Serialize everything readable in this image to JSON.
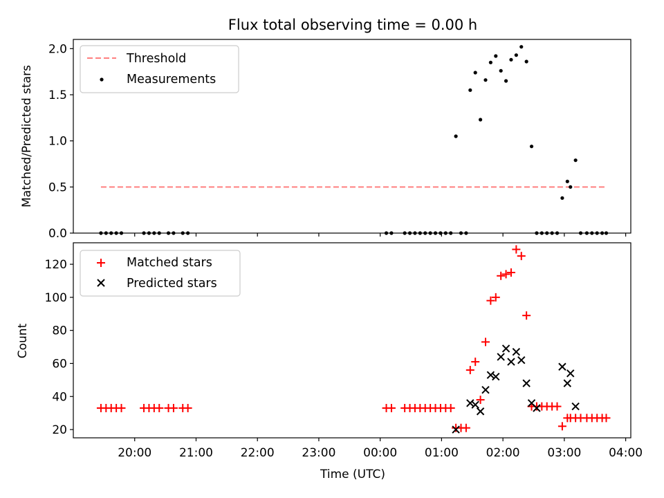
{
  "chart_data": [
    {
      "type": "scatter",
      "title": "Flux total observing time = 0.00 h",
      "xlabel": "",
      "ylabel": "Matched/Predicted stars",
      "ylim": [
        0,
        2.1
      ],
      "yticks": [
        "0.0",
        "0.5",
        "1.0",
        "1.5",
        "2.0"
      ],
      "ytick_values": [
        0,
        0.5,
        1.0,
        1.5,
        2.0
      ],
      "legend_position": "top-left",
      "threshold": {
        "name": "Threshold",
        "value": 0.5,
        "x_start": "19:27",
        "x_end": "03:41",
        "color": "#ff7f7f"
      },
      "series": [
        {
          "name": "Measurements",
          "color": "#000000",
          "x": [
            "19:27",
            "19:32",
            "19:37",
            "19:42",
            "19:47",
            "20:09",
            "20:14",
            "20:19",
            "20:24",
            "20:33",
            "20:38",
            "20:47",
            "20:52",
            "00:06",
            "00:11",
            "00:24",
            "00:29",
            "00:34",
            "00:39",
            "00:44",
            "00:49",
            "00:54",
            "00:59",
            "01:04",
            "01:09",
            "01:14",
            "01:19",
            "01:24",
            "01:28",
            "01:33",
            "01:38",
            "01:43",
            "01:48",
            "01:53",
            "01:58",
            "02:03",
            "02:08",
            "02:13",
            "02:18",
            "02:23",
            "02:28",
            "02:33",
            "02:38",
            "02:43",
            "02:48",
            "02:53",
            "02:58",
            "03:03",
            "03:06",
            "03:11",
            "03:16",
            "03:22",
            "03:27",
            "03:32",
            "03:37",
            "03:41"
          ],
          "y": [
            0,
            0,
            0,
            0,
            0,
            0,
            0,
            0,
            0,
            0,
            0,
            0,
            0,
            0,
            0,
            0,
            0,
            0,
            0,
            0,
            0,
            0,
            0,
            0,
            0,
            1.05,
            0,
            0,
            1.55,
            1.74,
            1.23,
            1.66,
            1.85,
            1.92,
            1.76,
            1.65,
            1.88,
            1.93,
            2.02,
            1.86,
            0.94,
            0,
            0,
            0,
            0,
            0,
            0.38,
            0.56,
            0.5,
            0.79,
            0,
            0,
            0,
            0,
            0,
            0
          ]
        }
      ]
    },
    {
      "type": "scatter",
      "title": "",
      "xlabel": "Time (UTC)",
      "ylabel": "Count",
      "ylim": [
        15,
        133
      ],
      "yticks": [
        "20",
        "40",
        "60",
        "80",
        "100",
        "120"
      ],
      "ytick_values": [
        20,
        40,
        60,
        80,
        100,
        120
      ],
      "xlim": [
        "19:00",
        "04:05"
      ],
      "xticks": [
        "20:00",
        "21:00",
        "22:00",
        "23:00",
        "00:00",
        "01:00",
        "02:00",
        "03:00",
        "04:00"
      ],
      "legend_position": "top-left",
      "series": [
        {
          "name": "Matched stars",
          "marker": "+",
          "color": "#ff0000",
          "x": [
            "19:27",
            "19:32",
            "19:37",
            "19:42",
            "19:47",
            "20:09",
            "20:14",
            "20:19",
            "20:24",
            "20:33",
            "20:38",
            "20:47",
            "20:52",
            "00:06",
            "00:11",
            "00:24",
            "00:29",
            "00:34",
            "00:39",
            "00:44",
            "00:49",
            "00:54",
            "00:59",
            "01:04",
            "01:09",
            "01:14",
            "01:19",
            "01:24",
            "01:28",
            "01:33",
            "01:38",
            "01:43",
            "01:48",
            "01:53",
            "01:58",
            "02:03",
            "02:08",
            "02:13",
            "02:18",
            "02:23",
            "02:28",
            "02:33",
            "02:38",
            "02:43",
            "02:48",
            "02:53",
            "02:58",
            "03:03",
            "03:06",
            "03:11",
            "03:16",
            "03:22",
            "03:27",
            "03:32",
            "03:37",
            "03:41"
          ],
          "y": [
            33,
            33,
            33,
            33,
            33,
            33,
            33,
            33,
            33,
            33,
            33,
            33,
            33,
            33,
            33,
            33,
            33,
            33,
            33,
            33,
            33,
            33,
            33,
            33,
            33,
            21,
            21,
            21,
            56,
            61,
            38,
            73,
            98,
            100,
            113,
            114,
            115,
            129,
            125,
            89,
            34,
            34,
            34,
            34,
            34,
            34,
            22,
            27,
            27,
            27,
            27,
            27,
            27,
            27,
            27,
            27
          ]
        },
        {
          "name": "Predicted stars",
          "marker": "x",
          "color": "#000000",
          "x": [
            "01:14",
            "01:28",
            "01:33",
            "01:38",
            "01:43",
            "01:48",
            "01:53",
            "01:58",
            "02:03",
            "02:08",
            "02:13",
            "02:18",
            "02:23",
            "02:28",
            "02:33",
            "02:58",
            "03:03",
            "03:06",
            "03:11"
          ],
          "y": [
            20,
            36,
            35,
            31,
            44,
            53,
            52,
            64,
            69,
            61,
            67,
            62,
            48,
            36,
            33,
            58,
            48,
            54,
            34
          ]
        }
      ]
    }
  ]
}
